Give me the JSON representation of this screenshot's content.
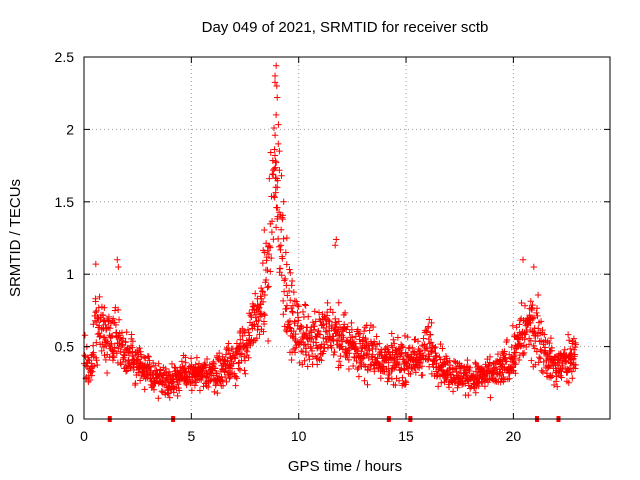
{
  "chart_data": {
    "type": "scatter",
    "title": "Day 049 of 2021, SRMTID for receiver sctb",
    "xlabel": "GPS time / hours",
    "ylabel": "SRMTID / TECUs",
    "xlim": [
      0,
      24.5
    ],
    "ylim": [
      0,
      2.5
    ],
    "x_ticks": [
      0,
      5,
      10,
      15,
      20
    ],
    "x_tick_labels": [
      "0",
      "5",
      "10",
      "15",
      "20"
    ],
    "y_ticks": [
      0,
      0.5,
      1,
      1.5,
      2,
      2.5
    ],
    "y_tick_labels": [
      "0",
      "0.5",
      "1",
      "1.5",
      "2",
      "2.5"
    ],
    "grid": true,
    "marker": "+",
    "color": "#ff0000",
    "gap_markers_x": [
      1.2,
      4.15,
      14.2,
      15.2,
      21.1,
      22.1
    ],
    "envelope": [
      [
        0.0,
        0.42
      ],
      [
        0.3,
        0.3
      ],
      [
        0.5,
        0.6
      ],
      [
        0.8,
        0.7
      ],
      [
        1.0,
        0.55
      ],
      [
        1.5,
        0.6
      ],
      [
        2.0,
        0.42
      ],
      [
        2.5,
        0.4
      ],
      [
        3.0,
        0.3
      ],
      [
        3.5,
        0.28
      ],
      [
        4.0,
        0.27
      ],
      [
        4.5,
        0.3
      ],
      [
        5.0,
        0.3
      ],
      [
        5.5,
        0.3
      ],
      [
        6.0,
        0.32
      ],
      [
        6.5,
        0.35
      ],
      [
        7.0,
        0.42
      ],
      [
        7.5,
        0.5
      ],
      [
        8.0,
        0.65
      ],
      [
        8.5,
        0.95
      ],
      [
        8.9,
        1.6
      ],
      [
        9.1,
        1.35
      ],
      [
        9.4,
        0.85
      ],
      [
        9.8,
        0.6
      ],
      [
        10.5,
        0.55
      ],
      [
        11.5,
        0.58
      ],
      [
        12.5,
        0.5
      ],
      [
        13.5,
        0.45
      ],
      [
        14.5,
        0.4
      ],
      [
        15.5,
        0.4
      ],
      [
        16.0,
        0.5
      ],
      [
        16.5,
        0.4
      ],
      [
        17.0,
        0.32
      ],
      [
        18.0,
        0.28
      ],
      [
        19.0,
        0.3
      ],
      [
        19.5,
        0.35
      ],
      [
        20.0,
        0.45
      ],
      [
        20.5,
        0.6
      ],
      [
        21.0,
        0.65
      ],
      [
        21.5,
        0.45
      ],
      [
        22.0,
        0.35
      ],
      [
        22.5,
        0.4
      ],
      [
        22.9,
        0.45
      ]
    ],
    "peaks": [
      [
        8.95,
        2.44
      ],
      [
        8.9,
        2.37
      ],
      [
        8.98,
        2.3
      ],
      [
        9.0,
        2.22
      ],
      [
        8.95,
        2.1
      ],
      [
        8.85,
        2.01
      ],
      [
        8.9,
        1.96
      ],
      [
        9.05,
        1.9
      ],
      [
        9.1,
        1.85
      ],
      [
        8.92,
        1.78
      ],
      [
        9.2,
        1.68
      ],
      [
        9.0,
        1.6
      ],
      [
        9.3,
        1.5
      ],
      [
        9.25,
        1.38
      ],
      [
        9.45,
        1.25
      ],
      [
        9.4,
        1.15
      ],
      [
        11.75,
        1.24
      ],
      [
        11.7,
        1.2
      ],
      [
        20.45,
        1.1
      ],
      [
        20.95,
        1.05
      ],
      [
        1.55,
        1.1
      ],
      [
        1.6,
        1.05
      ],
      [
        0.55,
        1.07
      ]
    ]
  }
}
